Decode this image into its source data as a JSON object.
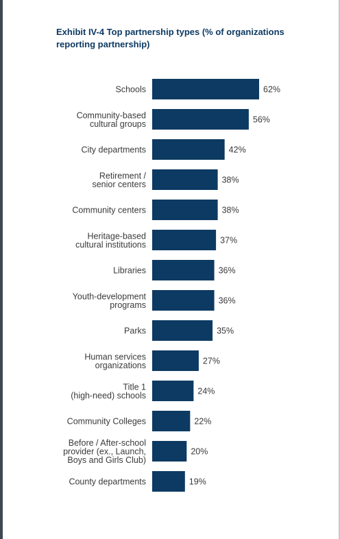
{
  "chart_data": {
    "type": "bar",
    "orientation": "horizontal",
    "title": "Exhibit IV-4 Top partnership types (% of organizations reporting partnership)",
    "bar_color": "#0d3a62",
    "title_color": "#0d3a62",
    "categories": [
      [
        "Schools"
      ],
      [
        "Community-based",
        "cultural groups"
      ],
      [
        "City departments"
      ],
      [
        "Retirement /",
        "senior centers"
      ],
      [
        "Community centers"
      ],
      [
        "Heritage-based",
        "cultural institutions"
      ],
      [
        "Libraries"
      ],
      [
        "Youth-development",
        "programs"
      ],
      [
        "Parks"
      ],
      [
        "Human services",
        "organizations"
      ],
      [
        "Title 1",
        "(high-need) schools"
      ],
      [
        "Community Colleges"
      ],
      [
        "Before / After-school",
        "provider (ex., Launch,",
        "Boys and Girls Club)"
      ],
      [
        "County departments"
      ]
    ],
    "values": [
      62,
      56,
      42,
      38,
      38,
      37,
      36,
      36,
      35,
      27,
      24,
      22,
      20,
      19
    ],
    "value_labels": [
      "62%",
      "56%",
      "42%",
      "38%",
      "38%",
      "37%",
      "36%",
      "36%",
      "35%",
      "27%",
      "24%",
      "22%",
      "20%",
      "19%"
    ]
  }
}
